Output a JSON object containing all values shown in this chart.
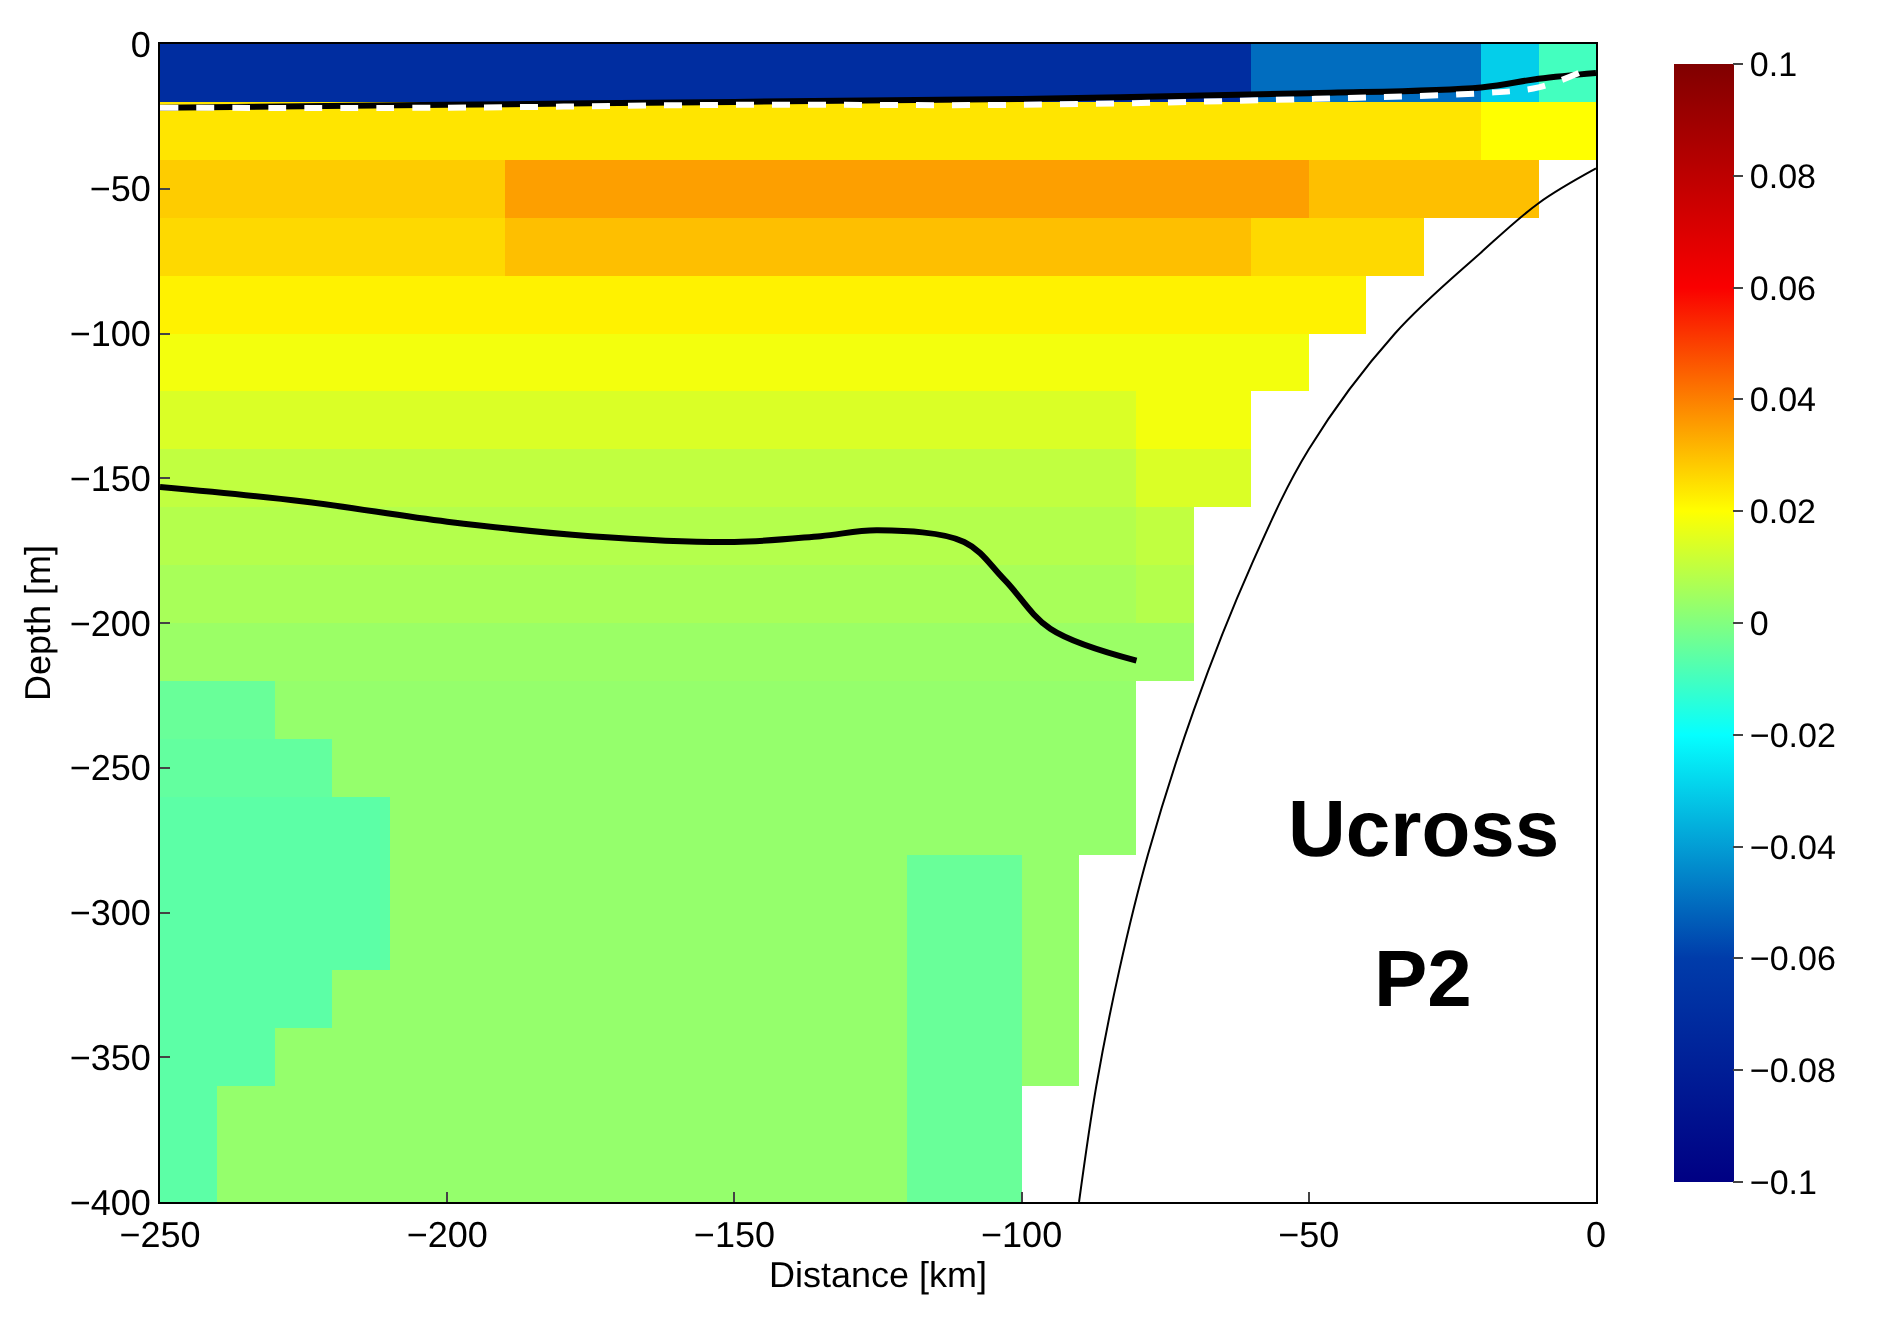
{
  "chart_data": {
    "type": "heatmap",
    "xlabel": "Distance [km]",
    "ylabel": "Depth [m]",
    "x": [
      -245,
      -235,
      -225,
      -215,
      -205,
      -195,
      -185,
      -175,
      -165,
      -155,
      -145,
      -135,
      -125,
      -115,
      -105,
      -95,
      -85,
      -75,
      -65,
      -55,
      -45,
      -35,
      -25,
      -15,
      -5
    ],
    "y": [
      -10,
      -30,
      -50,
      -70,
      -90,
      -110,
      -130,
      -150,
      -170,
      -190,
      -210,
      -230,
      -250,
      -270,
      -290,
      -310,
      -330,
      -350,
      -370,
      -390
    ],
    "cells": [
      [
        -0.07,
        -0.07,
        -0.07,
        -0.07,
        -0.07,
        -0.07,
        -0.07,
        -0.07,
        -0.07,
        -0.07,
        -0.07,
        -0.07,
        -0.07,
        -0.07,
        -0.07,
        -0.07,
        -0.07,
        -0.07,
        -0.07,
        -0.05,
        -0.05,
        -0.05,
        -0.05,
        -0.03,
        -0.01
      ],
      [
        0.024,
        0.024,
        0.024,
        0.024,
        0.024,
        0.024,
        0.024,
        0.024,
        0.024,
        0.024,
        0.024,
        0.024,
        0.024,
        0.024,
        0.024,
        0.024,
        0.024,
        0.024,
        0.024,
        0.024,
        0.024,
        0.024,
        0.024,
        0.02,
        0.02
      ],
      [
        0.028,
        0.028,
        0.028,
        0.028,
        0.028,
        0.028,
        0.035,
        0.035,
        0.035,
        0.035,
        0.035,
        0.035,
        0.035,
        0.035,
        0.035,
        0.035,
        0.035,
        0.035,
        0.035,
        0.035,
        0.03,
        0.03,
        0.03,
        0.03,
        null
      ],
      [
        0.026,
        0.026,
        0.026,
        0.026,
        0.026,
        0.026,
        0.03,
        0.03,
        0.03,
        0.03,
        0.03,
        0.03,
        0.03,
        0.03,
        0.03,
        0.03,
        0.03,
        0.03,
        0.03,
        0.026,
        0.026,
        0.026,
        null,
        null,
        null
      ],
      [
        0.022,
        0.022,
        0.022,
        0.022,
        0.022,
        0.022,
        0.022,
        0.022,
        0.022,
        0.022,
        0.022,
        0.022,
        0.022,
        0.022,
        0.022,
        0.022,
        0.022,
        0.022,
        0.022,
        0.022,
        0.022,
        null,
        null,
        null,
        null
      ],
      [
        0.018,
        0.018,
        0.018,
        0.018,
        0.018,
        0.018,
        0.018,
        0.018,
        0.018,
        0.018,
        0.018,
        0.018,
        0.018,
        0.018,
        0.018,
        0.018,
        0.018,
        0.018,
        0.018,
        0.018,
        null,
        null,
        null,
        null,
        null
      ],
      [
        0.014,
        0.014,
        0.014,
        0.014,
        0.014,
        0.014,
        0.014,
        0.014,
        0.014,
        0.014,
        0.014,
        0.014,
        0.014,
        0.014,
        0.014,
        0.014,
        0.014,
        0.018,
        0.018,
        null,
        null,
        null,
        null,
        null,
        null
      ],
      [
        0.01,
        0.01,
        0.01,
        0.01,
        0.01,
        0.01,
        0.01,
        0.01,
        0.01,
        0.01,
        0.01,
        0.01,
        0.01,
        0.01,
        0.01,
        0.01,
        0.01,
        0.014,
        0.014,
        null,
        null,
        null,
        null,
        null,
        null
      ],
      [
        0.008,
        0.008,
        0.008,
        0.008,
        0.008,
        0.008,
        0.008,
        0.008,
        0.008,
        0.008,
        0.008,
        0.008,
        0.008,
        0.008,
        0.008,
        0.008,
        0.008,
        0.01,
        null,
        null,
        null,
        null,
        null,
        null,
        null
      ],
      [
        0.006,
        0.006,
        0.006,
        0.006,
        0.006,
        0.006,
        0.006,
        0.006,
        0.006,
        0.006,
        0.006,
        0.006,
        0.006,
        0.006,
        0.006,
        0.006,
        0.006,
        0.008,
        null,
        null,
        null,
        null,
        null,
        null,
        null
      ],
      [
        0.004,
        0.004,
        0.004,
        0.004,
        0.004,
        0.004,
        0.004,
        0.004,
        0.004,
        0.004,
        0.004,
        0.004,
        0.004,
        0.004,
        0.004,
        0.004,
        0.004,
        0.004,
        null,
        null,
        null,
        null,
        null,
        null,
        null
      ],
      [
        -0.004,
        -0.004,
        0.003,
        0.003,
        0.003,
        0.003,
        0.003,
        0.003,
        0.003,
        0.003,
        0.003,
        0.003,
        0.003,
        0.003,
        0.003,
        0.003,
        0.003,
        null,
        null,
        null,
        null,
        null,
        null,
        null,
        null
      ],
      [
        -0.005,
        -0.005,
        -0.005,
        0.003,
        0.003,
        0.003,
        0.003,
        0.003,
        0.003,
        0.003,
        0.003,
        0.003,
        0.003,
        0.003,
        0.003,
        0.003,
        0.003,
        null,
        null,
        null,
        null,
        null,
        null,
        null,
        null
      ],
      [
        -0.006,
        -0.006,
        -0.006,
        -0.006,
        0.003,
        0.003,
        0.003,
        0.003,
        0.003,
        0.003,
        0.003,
        0.003,
        0.003,
        0.003,
        0.003,
        0.003,
        0.003,
        null,
        null,
        null,
        null,
        null,
        null,
        null,
        null
      ],
      [
        -0.006,
        -0.006,
        -0.006,
        -0.006,
        0.003,
        0.003,
        0.003,
        0.003,
        0.003,
        0.003,
        0.003,
        0.003,
        0.003,
        -0.004,
        -0.004,
        0.003,
        null,
        null,
        null,
        null,
        null,
        null,
        null,
        null,
        null
      ],
      [
        -0.006,
        -0.006,
        -0.006,
        -0.006,
        0.003,
        0.003,
        0.003,
        0.003,
        0.003,
        0.003,
        0.003,
        0.003,
        0.003,
        -0.004,
        -0.004,
        0.003,
        null,
        null,
        null,
        null,
        null,
        null,
        null,
        null,
        null
      ],
      [
        -0.006,
        -0.006,
        -0.006,
        0.003,
        0.003,
        0.003,
        0.003,
        0.003,
        0.003,
        0.003,
        0.003,
        0.003,
        0.003,
        -0.004,
        -0.004,
        0.003,
        null,
        null,
        null,
        null,
        null,
        null,
        null,
        null,
        null
      ],
      [
        -0.006,
        -0.006,
        0.003,
        0.003,
        0.003,
        0.003,
        0.003,
        0.003,
        0.003,
        0.003,
        0.003,
        0.003,
        0.003,
        -0.004,
        -0.004,
        0.003,
        null,
        null,
        null,
        null,
        null,
        null,
        null,
        null,
        null
      ],
      [
        -0.006,
        0.003,
        0.003,
        0.003,
        0.003,
        0.003,
        0.003,
        0.003,
        0.003,
        0.003,
        0.003,
        0.003,
        0.003,
        -0.004,
        -0.004,
        null,
        null,
        null,
        null,
        null,
        null,
        null,
        null,
        null,
        null
      ],
      [
        -0.006,
        0.003,
        0.003,
        0.003,
        0.003,
        0.003,
        0.003,
        0.003,
        0.003,
        0.003,
        0.003,
        0.003,
        0.003,
        -0.004,
        -0.004,
        null,
        null,
        null,
        null,
        null,
        null,
        null,
        null,
        null,
        null
      ]
    ],
    "clim": [
      -0.1,
      0.1
    ],
    "cticks": [
      {
        "value": -0.1,
        "label": "−0.1"
      },
      {
        "value": -0.08,
        "label": "−0.08"
      },
      {
        "value": -0.06,
        "label": "−0.06"
      },
      {
        "value": -0.04,
        "label": "−0.04"
      },
      {
        "value": -0.02,
        "label": "−0.02"
      },
      0,
      0.02,
      0.04,
      0.06,
      0.08,
      0.1
    ],
    "xlim": [
      -250,
      0
    ],
    "xticks": [
      {
        "value": -250,
        "label": "−250"
      },
      {
        "value": -200,
        "label": "−200"
      },
      {
        "value": -150,
        "label": "−150"
      },
      {
        "value": -100,
        "label": "−100"
      },
      {
        "value": -50,
        "label": "−50"
      },
      0
    ],
    "ylim": [
      -400,
      0
    ],
    "yticks": [
      {
        "value": -400,
        "label": "−400"
      },
      {
        "value": -350,
        "label": "−350"
      },
      {
        "value": -300,
        "label": "−300"
      },
      {
        "value": -250,
        "label": "−250"
      },
      {
        "value": -200,
        "label": "−200"
      },
      {
        "value": -150,
        "label": "−150"
      },
      {
        "value": -100,
        "label": "−100"
      },
      {
        "value": -50,
        "label": "−50"
      },
      0
    ],
    "series": [
      {
        "type": "line",
        "color": "#000000",
        "line_style": "solid",
        "x": [
          -250,
          -200,
          -150,
          -100,
          -50,
          -20,
          -10,
          0
        ],
        "values": [
          -22,
          -21,
          -20,
          -19,
          -17,
          -15,
          -12,
          -10
        ]
      },
      {
        "type": "line",
        "color": "#ffffff",
        "line_style": "dashed",
        "x": [
          -250,
          -200,
          -150,
          -100,
          -50,
          -20,
          -10,
          -3
        ],
        "values": [
          -22,
          -22,
          -21,
          -21,
          -19,
          -17,
          -15,
          -10
        ]
      },
      {
        "type": "line",
        "color": "#000000",
        "line_style": "solid",
        "x": [
          -250,
          -225,
          -200,
          -175,
          -150,
          -135,
          -125,
          -110,
          -103,
          -95,
          -80
        ],
        "values": [
          -153,
          -158,
          -165,
          -170,
          -172,
          -170,
          -168,
          -172,
          -185,
          -202,
          -213
        ]
      },
      {
        "type": "line",
        "color": "#000000",
        "line_style": "solid",
        "x": [
          -90,
          -87,
          -83,
          -78,
          -70,
          -60,
          -50,
          -35,
          -20,
          -10,
          0
        ],
        "values": [
          -400,
          -360,
          -320,
          -280,
          -230,
          -180,
          -140,
          -100,
          -72,
          -55,
          -43
        ]
      }
    ],
    "annotations": [
      "Ucross",
      "P2"
    ]
  }
}
